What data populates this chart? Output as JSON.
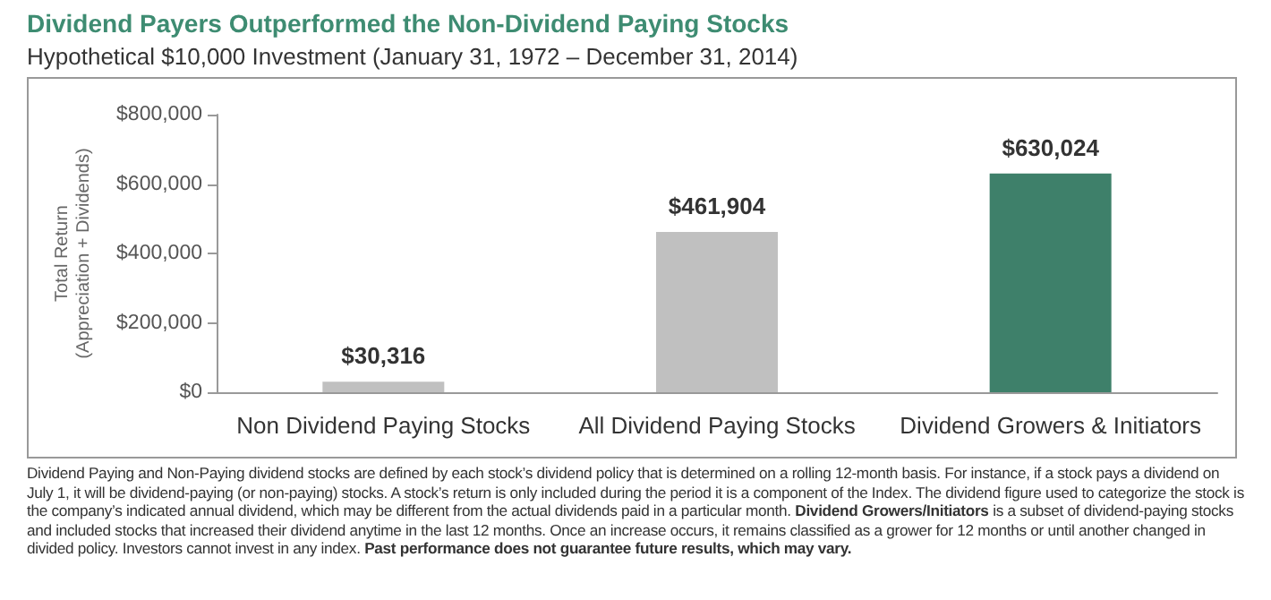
{
  "chart_data": {
    "type": "bar",
    "title": "Dividend Payers Outperformed the Non-Dividend Paying Stocks",
    "subtitle": "Hypothetical $10,000 Investment (January 31, 1972 – December 31, 2014)",
    "ylabel": "Total Return\n(Appreciation + Dividends)",
    "categories": [
      "Non Dividend Paying Stocks",
      "All Dividend Paying Stocks",
      "Dividend Growers & Initiators"
    ],
    "values": [
      30316,
      461904,
      630024
    ],
    "colors": [
      "#c0c0c0",
      "#c0c0c0",
      "#3e806a"
    ],
    "value_labels": [
      "$30,316",
      "$461,904",
      "$630,024"
    ],
    "ylim": [
      0,
      800000
    ],
    "yticks": [
      {
        "value": 0,
        "label": "$0"
      },
      {
        "value": 200000,
        "label": "$200,000"
      },
      {
        "value": 400000,
        "label": "$400,000"
      },
      {
        "value": 600000,
        "label": "$600,000"
      },
      {
        "value": 800000,
        "label": "$800,000"
      }
    ],
    "annotations": [
      "Dividend Paying and Non-Paying dividend stocks are defined by each stock’s dividend policy that is determined on a rolling 12-month basis. For instance, if a stock pays a dividend on July 1, it will be dividend-paying (or non-paying) stocks. A stock’s return is only included during the period it is a component of the Index. The dividend figure used to categorize the stock is the company’s indicated annual dividend, which may be different from the actual dividends paid in a particular month.",
      "Dividend Growers/Initiators",
      "is a subset of dividend-paying stocks and included stocks that increased their dividend anytime in the last 12 months. Once an increase occurs, it remains classified as a grower for 12 months or until another changed in divided policy. Investors cannot invest in any index.",
      "Past performance does not guarantee future results, which may vary."
    ]
  }
}
